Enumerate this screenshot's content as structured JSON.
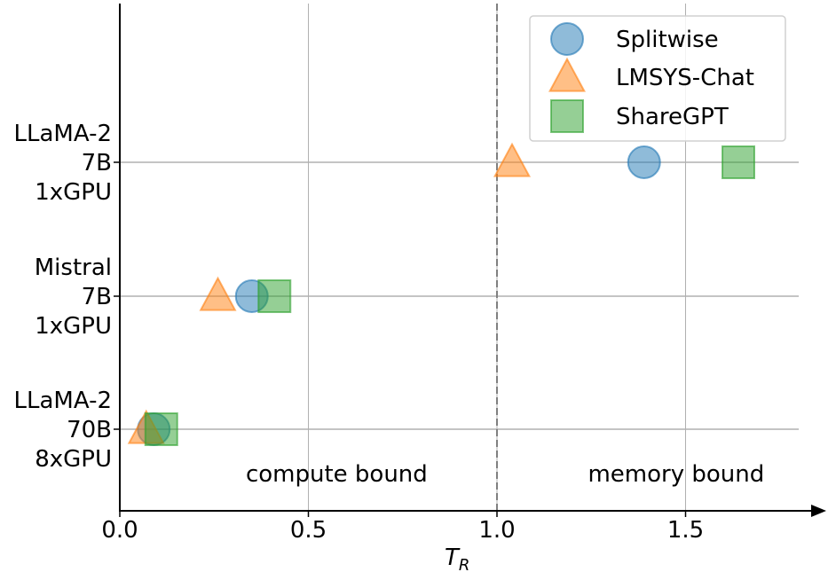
{
  "chart_data": {
    "type": "scatter",
    "xlabel_main": "T",
    "xlabel_sub": "R",
    "xlim": [
      0,
      1.8
    ],
    "xticks": [
      0.0,
      0.5,
      1.0,
      1.5
    ],
    "xtick_labels": [
      "0.0",
      "0.5",
      "1.0",
      "1.5"
    ],
    "ycategories": [
      {
        "lines": [
          "LLaMA-2",
          "7B",
          "1xGPU"
        ]
      },
      {
        "lines": [
          "Mistral",
          "7B",
          "1xGPU"
        ]
      },
      {
        "lines": [
          "LLaMA-2",
          "70B",
          "8xGPU"
        ]
      }
    ],
    "threshold_x": 1.0,
    "annotations": [
      {
        "text": "compute bound",
        "x": 0.575
      },
      {
        "text": "memory bound",
        "x": 1.475
      }
    ],
    "series": [
      {
        "name": "Splitwise",
        "marker": "circle",
        "color": "#1f77b4",
        "points": [
          {
            "category": 0,
            "x": 1.39
          },
          {
            "category": 1,
            "x": 0.35
          },
          {
            "category": 2,
            "x": 0.09
          }
        ]
      },
      {
        "name": "LMSYS-Chat",
        "marker": "triangle",
        "color": "#ff7f0e",
        "points": [
          {
            "category": 0,
            "x": 1.04
          },
          {
            "category": 1,
            "x": 0.26
          },
          {
            "category": 2,
            "x": 0.07
          }
        ]
      },
      {
        "name": "ShareGPT",
        "marker": "square",
        "color": "#2ca02c",
        "points": [
          {
            "category": 0,
            "x": 1.64
          },
          {
            "category": 1,
            "x": 0.41
          },
          {
            "category": 2,
            "x": 0.11
          }
        ]
      }
    ],
    "legend_position": "top-right",
    "grid": true
  }
}
